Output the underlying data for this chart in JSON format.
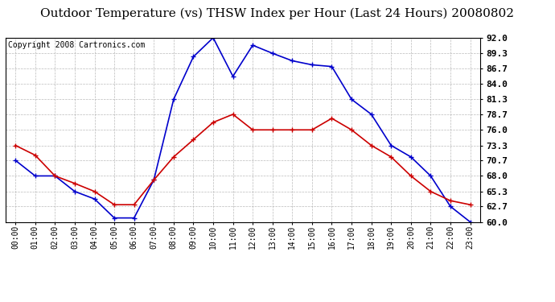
{
  "title": "Outdoor Temperature (vs) THSW Index per Hour (Last 24 Hours) 20080802",
  "copyright": "Copyright 2008 Cartronics.com",
  "hours": [
    "00:00",
    "01:00",
    "02:00",
    "03:00",
    "04:00",
    "05:00",
    "06:00",
    "07:00",
    "08:00",
    "09:00",
    "10:00",
    "11:00",
    "12:00",
    "13:00",
    "14:00",
    "15:00",
    "16:00",
    "17:00",
    "18:00",
    "19:00",
    "20:00",
    "21:00",
    "22:00",
    "23:00"
  ],
  "temp": [
    73.3,
    71.6,
    68.0,
    66.7,
    65.3,
    63.0,
    63.0,
    67.3,
    71.3,
    74.3,
    77.3,
    78.7,
    76.0,
    76.0,
    76.0,
    76.0,
    78.0,
    76.0,
    73.3,
    71.3,
    68.0,
    65.3,
    63.7,
    63.0
  ],
  "thsw": [
    70.7,
    68.0,
    68.0,
    65.3,
    64.0,
    60.7,
    60.7,
    67.3,
    81.3,
    88.7,
    92.0,
    85.3,
    90.7,
    89.3,
    88.0,
    87.3,
    87.0,
    81.3,
    78.7,
    73.3,
    71.3,
    68.0,
    62.7,
    60.0
  ],
  "temp_color": "#cc0000",
  "thsw_color": "#0000cc",
  "background_color": "#ffffff",
  "plot_bg_color": "#ffffff",
  "grid_color": "#aaaaaa",
  "ylim": [
    60.0,
    92.0
  ],
  "yticks": [
    60.0,
    62.7,
    65.3,
    68.0,
    70.7,
    73.3,
    76.0,
    78.7,
    81.3,
    84.0,
    86.7,
    89.3,
    92.0
  ],
  "title_fontsize": 11,
  "copyright_fontsize": 7,
  "marker": "+",
  "marker_size": 5,
  "line_width": 1.2
}
